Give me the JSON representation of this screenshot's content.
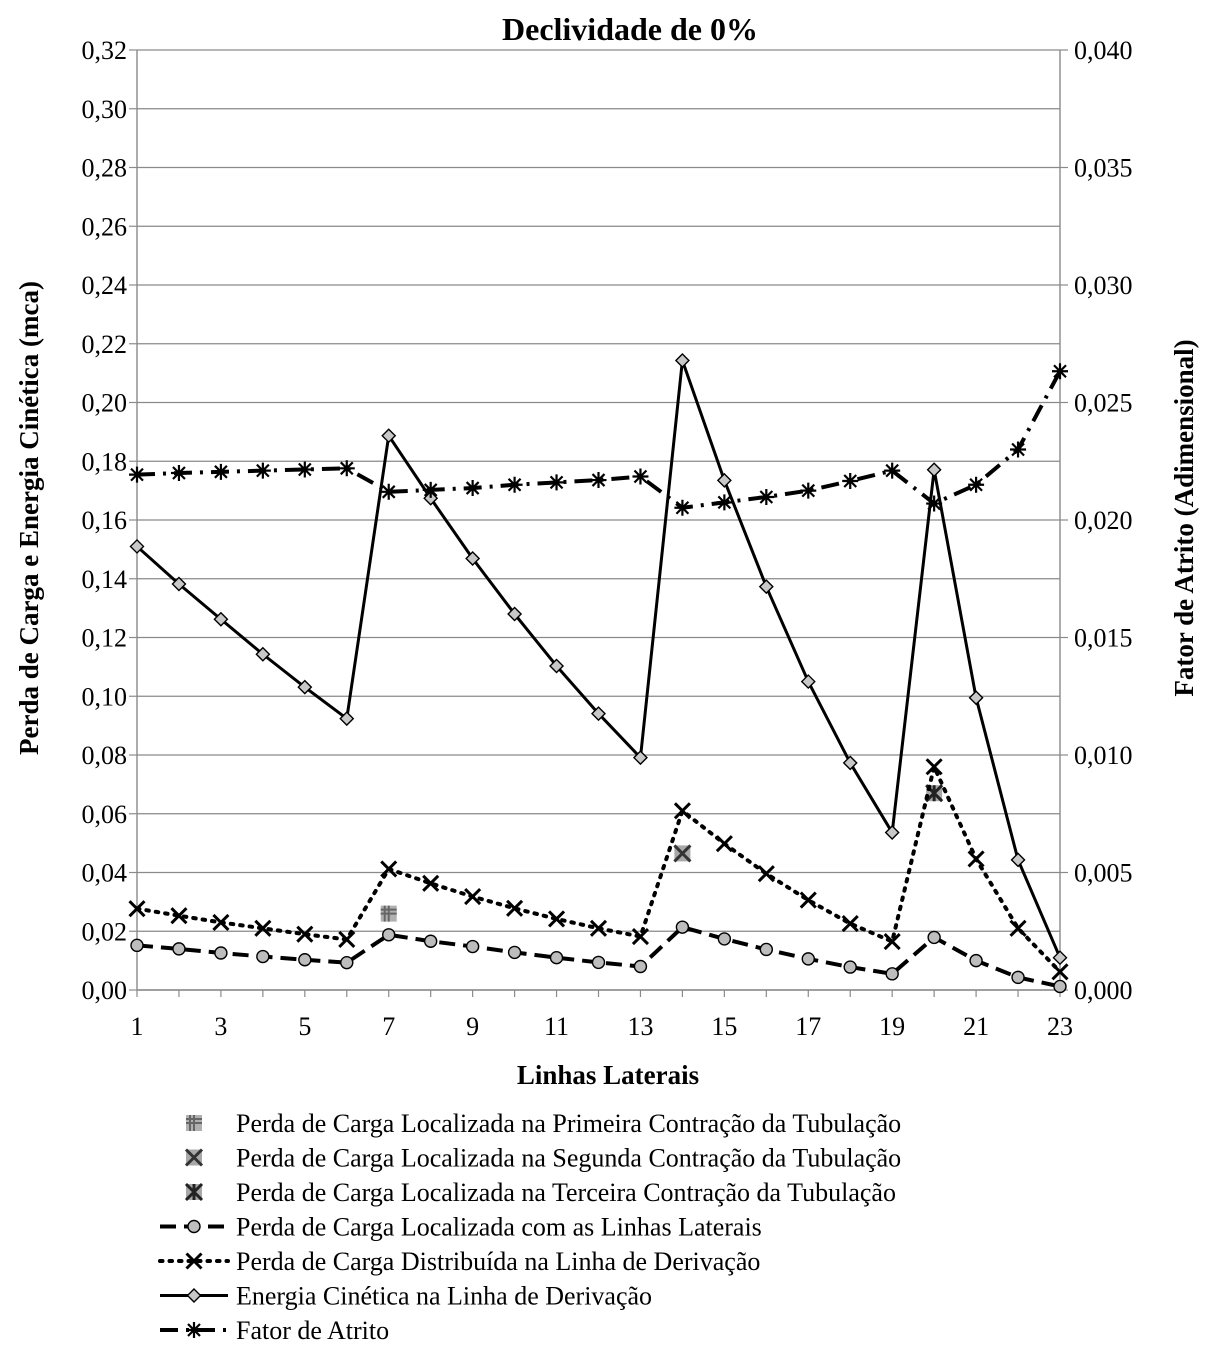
{
  "chart_data": {
    "type": "line",
    "title": "Declividade de 0%",
    "xlabel": "Linhas Laterais",
    "ylabel": "Perda de Carga e Energia Cinética (mca)",
    "y2label": "Fator de Atrito (Adimensional)",
    "x": [
      1,
      2,
      3,
      4,
      5,
      6,
      7,
      8,
      9,
      10,
      11,
      12,
      13,
      14,
      15,
      16,
      17,
      18,
      19,
      20,
      21,
      22,
      23
    ],
    "x_ticks": [
      "1",
      "3",
      "5",
      "7",
      "9",
      "11",
      "13",
      "15",
      "17",
      "19",
      "21",
      "23"
    ],
    "ylim": [
      0,
      0.32
    ],
    "y_ticks": [
      "0,00",
      "0,02",
      "0,04",
      "0,06",
      "0,08",
      "0,10",
      "0,12",
      "0,14",
      "0,16",
      "0,18",
      "0,20",
      "0,22",
      "0,24",
      "0,26",
      "0,28",
      "0,30",
      "0,32"
    ],
    "y2lim": [
      0,
      0.04
    ],
    "y2_ticks": [
      "0,000",
      "0,005",
      "0,010",
      "0,015",
      "0,020",
      "0,025",
      "0,030",
      "0,035",
      "0,040"
    ],
    "grid": "horizontal",
    "legend_position": "bottom",
    "series": [
      {
        "name": "Perda de Carga Localizada na Primeira Contração da Tubulação",
        "axis": "left",
        "style": "marker-only",
        "marker": "hash",
        "points": [
          {
            "x": 7,
            "y": 0.026
          }
        ]
      },
      {
        "name": "Perda de Carga Localizada na Segunda Contração da Tubulação",
        "axis": "left",
        "style": "marker-only",
        "marker": "x-gray",
        "points": [
          {
            "x": 14,
            "y": 0.0465
          }
        ]
      },
      {
        "name": "Perda de Carga Localizada na Terceira Contração da Tubulação",
        "axis": "left",
        "style": "marker-only",
        "marker": "x-star",
        "points": [
          {
            "x": 20,
            "y": 0.067
          }
        ]
      },
      {
        "name": "Perda de Carga Localizada com as Linhas Laterais",
        "axis": "left",
        "style": "dashed",
        "marker": "circle",
        "values": [
          0.0152,
          0.014,
          0.0126,
          0.0114,
          0.0103,
          0.0093,
          0.0188,
          0.0166,
          0.0148,
          0.0128,
          0.011,
          0.0094,
          0.008,
          0.0214,
          0.0174,
          0.0138,
          0.0106,
          0.0078,
          0.0055,
          0.0179,
          0.01,
          0.0043,
          0.0012
        ]
      },
      {
        "name": "Perda de Carga Distribuída na Linha de Derivação",
        "axis": "left",
        "style": "dotted",
        "marker": "x",
        "values": [
          0.0277,
          0.0253,
          0.023,
          0.021,
          0.019,
          0.0172,
          0.0412,
          0.0363,
          0.0318,
          0.0278,
          0.0242,
          0.021,
          0.0182,
          0.061,
          0.0498,
          0.0396,
          0.0306,
          0.0226,
          0.0165,
          0.076,
          0.0446,
          0.021,
          0.0062
        ]
      },
      {
        "name": "Energia Cinética na Linha de Derivação",
        "axis": "left",
        "style": "solid",
        "marker": "diamond",
        "values": [
          0.151,
          0.1382,
          0.1262,
          0.1143,
          0.1031,
          0.0924,
          0.1887,
          0.1674,
          0.1469,
          0.128,
          0.1103,
          0.0941,
          0.0791,
          0.2143,
          0.1735,
          0.1373,
          0.105,
          0.0773,
          0.0536,
          0.1771,
          0.0995,
          0.0443,
          0.011
        ]
      },
      {
        "name": "Fator de Atrito",
        "axis": "right",
        "style": "dash-dot",
        "marker": "asterisk",
        "values": [
          0.02193,
          0.022,
          0.02205,
          0.0221,
          0.02215,
          0.0222,
          0.0212,
          0.02128,
          0.02136,
          0.0215,
          0.0216,
          0.0217,
          0.02185,
          0.02052,
          0.02075,
          0.02098,
          0.02125,
          0.02166,
          0.0221,
          0.0207,
          0.0215,
          0.023,
          0.02633
        ]
      }
    ]
  }
}
